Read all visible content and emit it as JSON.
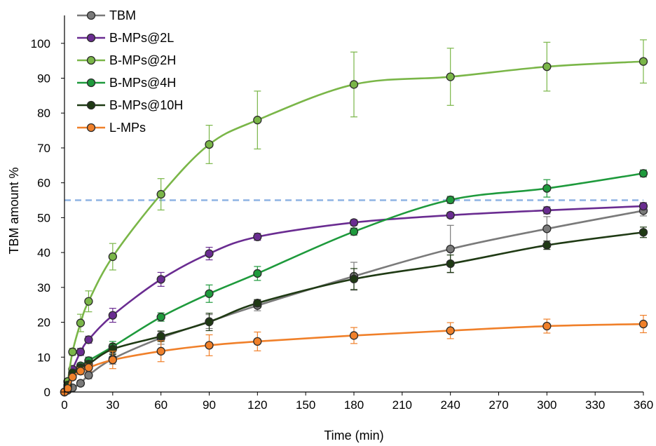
{
  "chart_data": {
    "type": "line",
    "xlabel": "Time (min)",
    "ylabel": "TBM amount %",
    "xlim": [
      0,
      360
    ],
    "ylim": [
      0,
      108
    ],
    "xticks": [
      0,
      30,
      60,
      90,
      120,
      150,
      180,
      210,
      240,
      270,
      300,
      330,
      360
    ],
    "yticks": [
      0,
      10,
      20,
      30,
      40,
      50,
      60,
      70,
      80,
      90,
      100
    ],
    "grid": false,
    "legend_position": "top-left",
    "reference_line": {
      "y": 55,
      "color": "#8fb4e3",
      "style": "dashed"
    },
    "series": [
      {
        "name": "TBM",
        "color": "#7a7a7a",
        "x": [
          0,
          2,
          5,
          10,
          15,
          30,
          60,
          90,
          120,
          180,
          240,
          300,
          360
        ],
        "y": [
          0,
          0.5,
          1.2,
          2.5,
          4.8,
          9.5,
          15.5,
          20.2,
          24.8,
          33.2,
          41.0,
          46.8,
          52.0
        ],
        "err": [
          0,
          0.3,
          0.5,
          0.8,
          1.0,
          1.5,
          1.8,
          2.0,
          1.5,
          4.0,
          6.8,
          3.5,
          1.5
        ]
      },
      {
        "name": "B-MPs@2L",
        "color": "#6a2c91",
        "x": [
          0,
          2,
          5,
          10,
          15,
          30,
          60,
          90,
          120,
          180,
          240,
          300,
          360
        ],
        "y": [
          0,
          3.0,
          6.5,
          11.5,
          15.0,
          22.0,
          32.3,
          39.7,
          44.5,
          48.6,
          50.7,
          52.1,
          53.3
        ],
        "err": [
          0,
          0.5,
          0.8,
          1.0,
          1.0,
          2.0,
          2.0,
          1.8,
          1.0,
          0.8,
          0.8,
          1.0,
          1.0
        ]
      },
      {
        "name": "B-MPs@2H",
        "color": "#7ab648",
        "x": [
          0,
          2,
          5,
          10,
          15,
          30,
          60,
          90,
          120,
          180,
          240,
          300,
          360
        ],
        "y": [
          0,
          3.0,
          11.5,
          19.8,
          26.0,
          38.8,
          56.7,
          71.0,
          78.0,
          88.2,
          90.4,
          93.3,
          94.8
        ],
        "err": [
          0,
          0.5,
          1.0,
          2.5,
          3.0,
          3.8,
          4.5,
          5.5,
          8.3,
          9.3,
          8.2,
          7.0,
          6.2
        ]
      },
      {
        "name": "B-MPs@4H",
        "color": "#1e9a3c",
        "x": [
          0,
          2,
          5,
          10,
          15,
          30,
          60,
          90,
          120,
          180,
          240,
          300,
          360
        ],
        "y": [
          0,
          1.5,
          5.0,
          7.5,
          9.0,
          13.0,
          21.5,
          28.2,
          34.0,
          46.0,
          55.1,
          58.4,
          62.7
        ],
        "err": [
          0,
          0.4,
          0.6,
          0.8,
          1.0,
          1.5,
          1.2,
          2.5,
          2.0,
          1.0,
          1.0,
          2.5,
          1.0
        ]
      },
      {
        "name": "B-MPs@10H",
        "color": "#1f3a14",
        "x": [
          0,
          2,
          5,
          10,
          15,
          30,
          60,
          90,
          120,
          180,
          240,
          300,
          360
        ],
        "y": [
          0,
          2.0,
          5.5,
          7.0,
          8.0,
          12.3,
          16.0,
          20.1,
          25.5,
          32.4,
          36.8,
          42.1,
          45.8
        ],
        "err": [
          0,
          0.4,
          0.6,
          0.8,
          1.0,
          1.5,
          1.5,
          2.5,
          1.0,
          3.0,
          2.5,
          1.2,
          1.5
        ]
      },
      {
        "name": "L-MPs",
        "color": "#f0802a",
        "x": [
          0,
          2,
          5,
          10,
          15,
          30,
          60,
          90,
          120,
          180,
          240,
          300,
          360
        ],
        "y": [
          0,
          1.0,
          4.3,
          6.0,
          7.0,
          9.2,
          11.7,
          13.4,
          14.5,
          16.2,
          17.6,
          18.9,
          19.5
        ],
        "err": [
          0,
          0.5,
          0.8,
          1.0,
          1.0,
          2.5,
          3.0,
          3.0,
          2.7,
          2.3,
          2.3,
          2.0,
          2.5
        ]
      }
    ]
  }
}
